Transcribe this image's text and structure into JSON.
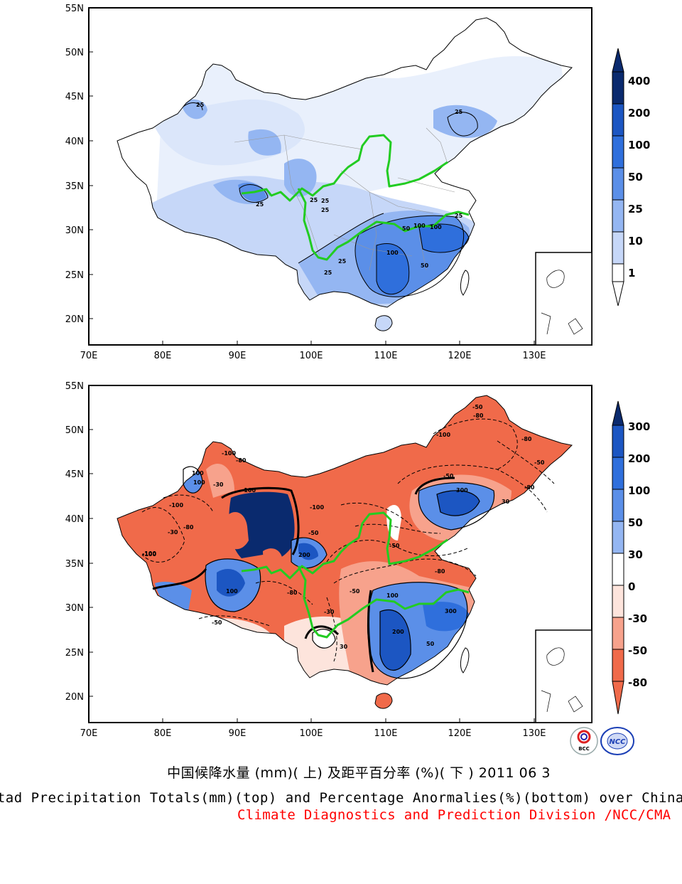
{
  "top_map": {
    "lat_ticks": [
      "55N",
      "50N",
      "45N",
      "40N",
      "35N",
      "30N",
      "25N",
      "20N"
    ],
    "lon_ticks": [
      "70E",
      "80E",
      "90E",
      "100E",
      "110E",
      "120E",
      "130E"
    ],
    "colorbar": {
      "labels": [
        "400",
        "200",
        "100",
        "50",
        "25",
        "10",
        "1"
      ],
      "colors": [
        "#0a2a6e",
        "#1c56c2",
        "#2f6fdc",
        "#5b8fe8",
        "#94b6f2",
        "#c6d7f8",
        "#ffffff"
      ]
    },
    "contour_labels": [
      "25",
      "25",
      "25",
      "25",
      "25",
      "25",
      "25",
      "25",
      "50",
      "50",
      "100",
      "100",
      "100",
      "25"
    ]
  },
  "bottom_map": {
    "lat_ticks": [
      "55N",
      "50N",
      "45N",
      "40N",
      "35N",
      "30N",
      "25N",
      "20N"
    ],
    "lon_ticks": [
      "70E",
      "80E",
      "90E",
      "100E",
      "110E",
      "120E",
      "130E"
    ],
    "colorbar": {
      "labels": [
        "300",
        "200",
        "100",
        "50",
        "30",
        "0",
        "-30",
        "-50",
        "-80"
      ],
      "colors": [
        "#0a2a6e",
        "#1c56c2",
        "#2f6fdc",
        "#5b8fe8",
        "#94b6f2",
        "#ffffff",
        "#fde4dc",
        "#f7a28c",
        "#f06a4a"
      ]
    },
    "contour_labels": [
      "-100",
      "-80",
      "-50",
      "-80",
      "-100",
      "-50",
      "-80",
      "-100",
      "-100",
      "-80",
      "-50",
      "-100",
      "-30",
      "-50",
      "100",
      "100",
      "200",
      "300",
      "300",
      "200",
      "100",
      "50",
      "-100",
      "-80",
      "-30",
      "-50",
      "30",
      "-50",
      "-80",
      "-100",
      "30",
      "100",
      "-30",
      "-80",
      "-50"
    ]
  },
  "logos": {
    "left": "BCC",
    "right": "NCC"
  },
  "caption": {
    "chinese": "中国候降水量 (mm)( 上) 及距平百分率 (%)( 下 ) 2011 06 3",
    "english": "Pentad Precipitation Totals(mm)(top) and Percentage Anormalies(%)(bottom) over China",
    "division": "Climate Diagnostics and Prediction Division /NCC/CMA"
  },
  "colors": {
    "outline": "#000000",
    "river": "#22cc22",
    "province": "#999999"
  }
}
